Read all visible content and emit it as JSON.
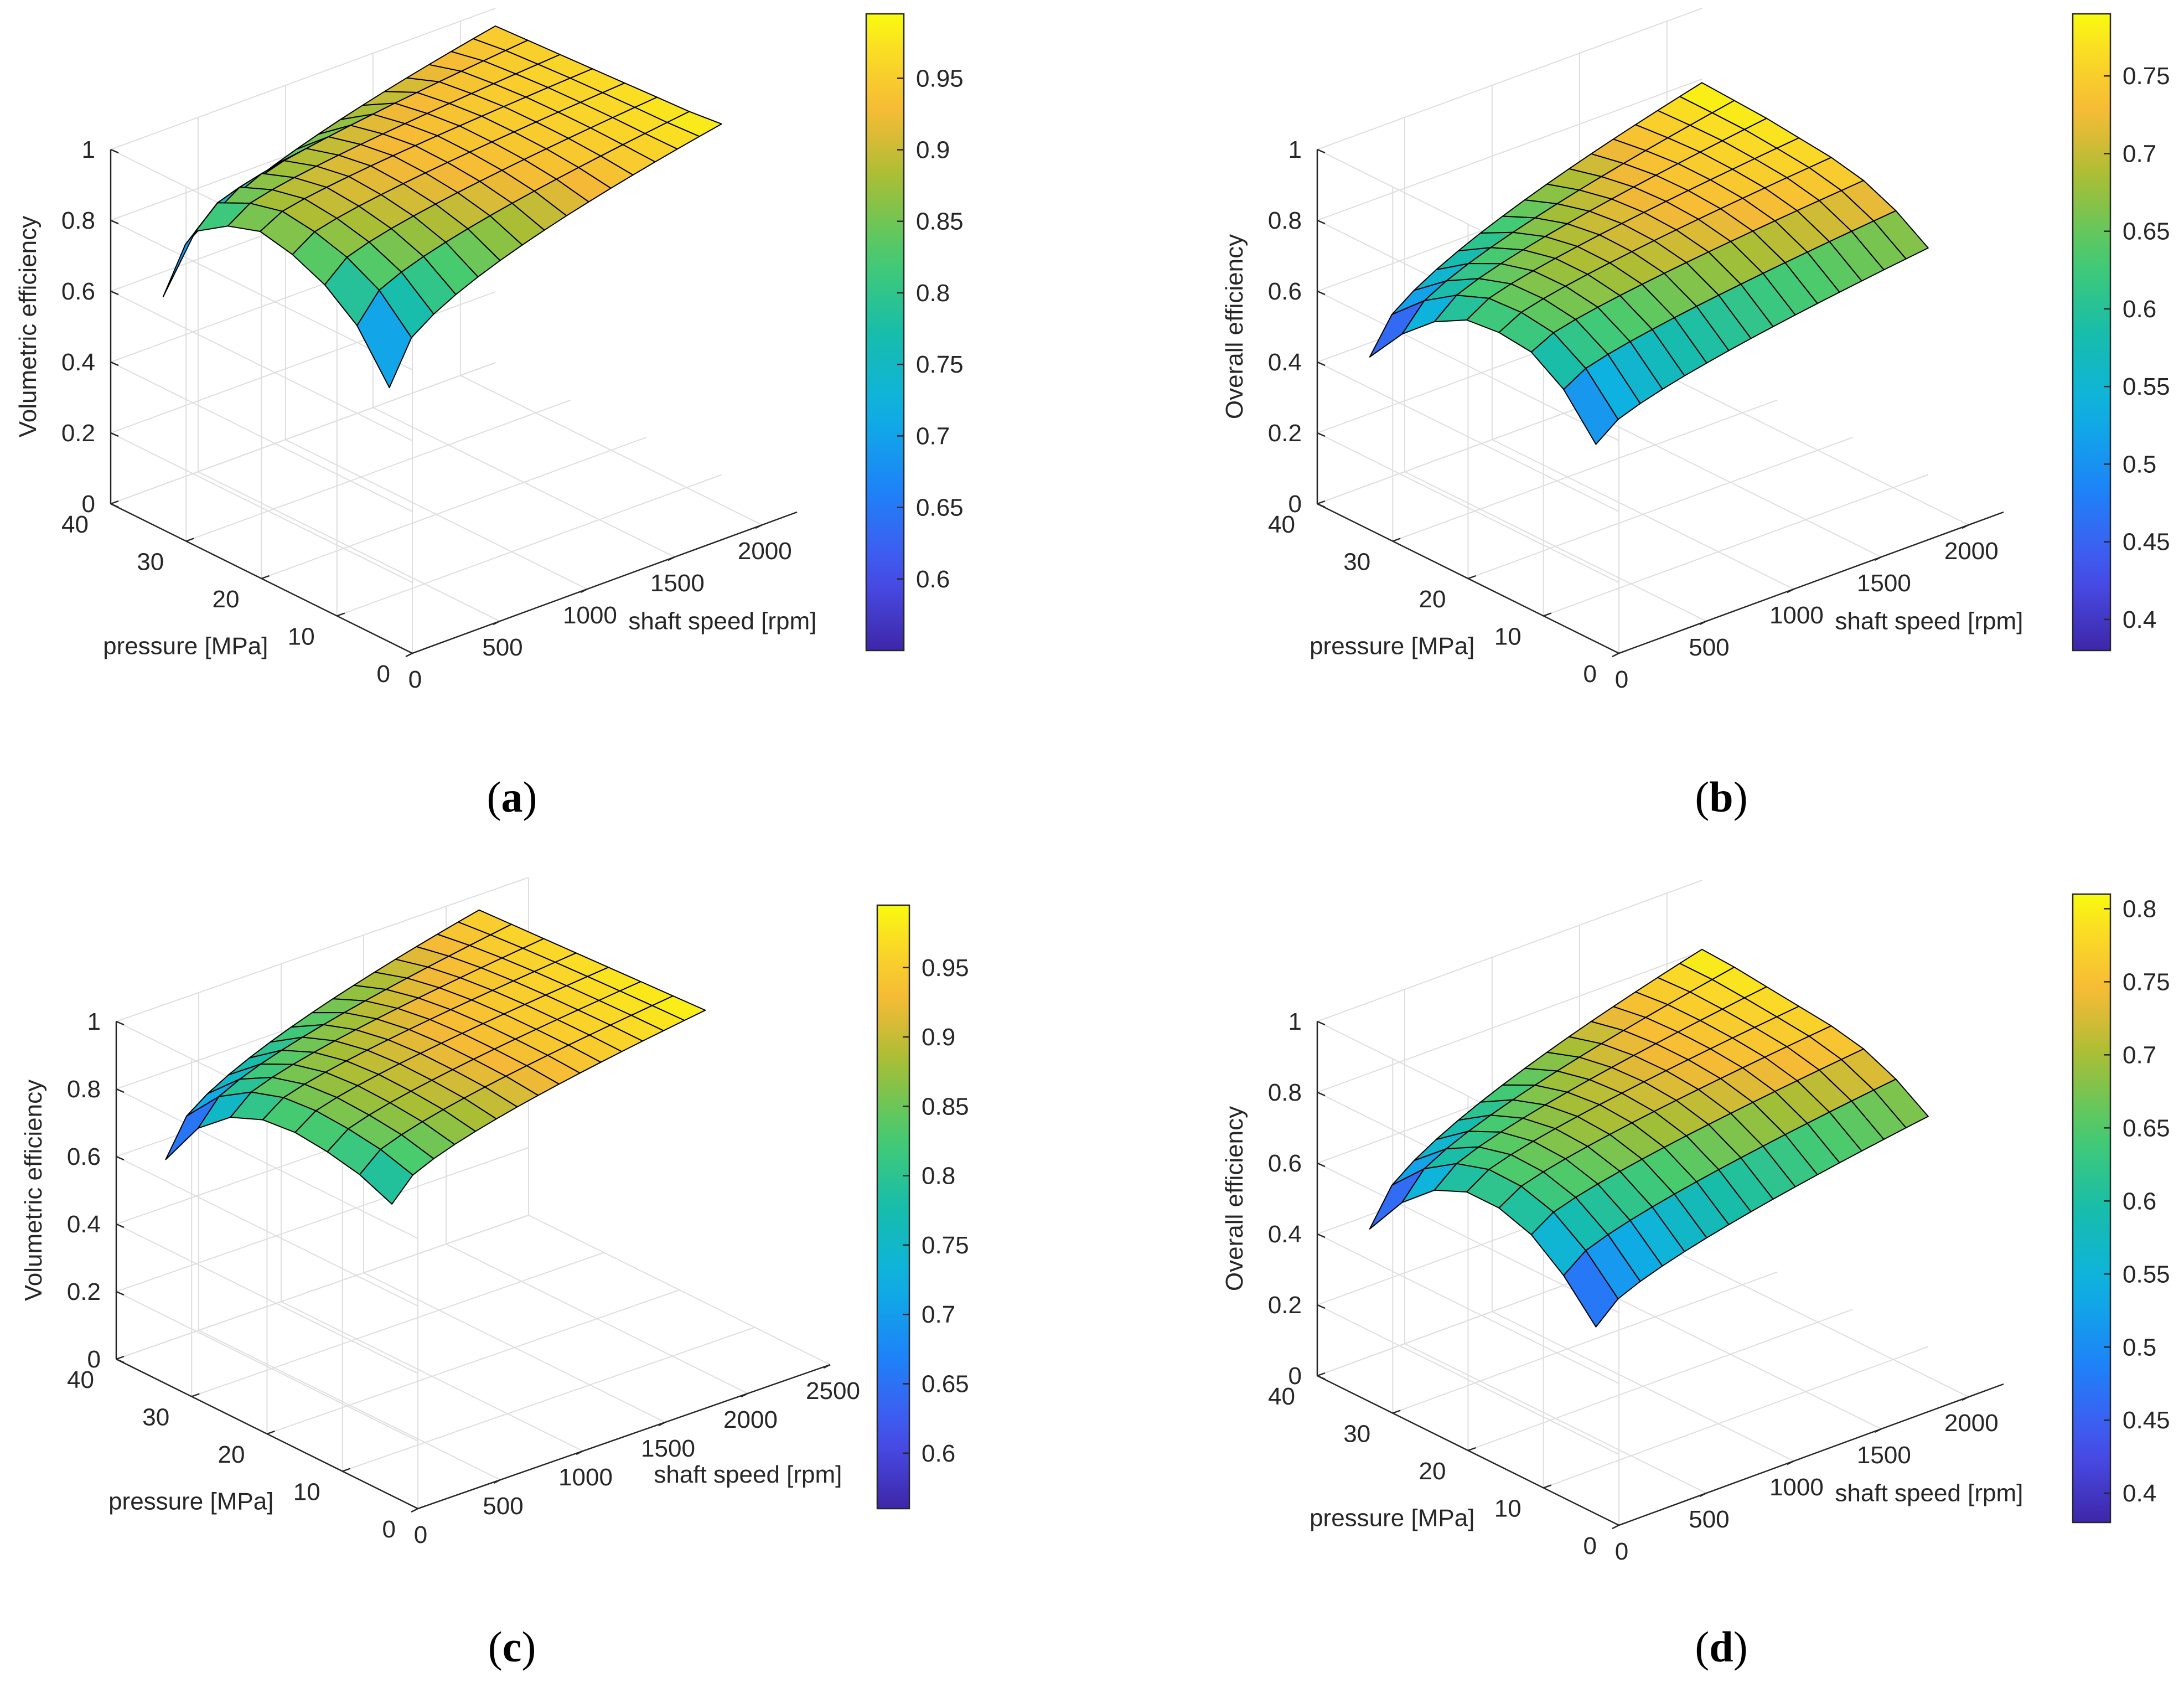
{
  "figure": {
    "colormap": "parula",
    "edge_color": "#000000",
    "grid_color": "#dedede",
    "axis_color": "#262626"
  },
  "captions": [
    {
      "open": "(",
      "letter": "a",
      "close": ")"
    },
    {
      "open": "(",
      "letter": "b",
      "close": ")"
    },
    {
      "open": "(",
      "letter": "c",
      "close": ")"
    },
    {
      "open": "(",
      "letter": "d",
      "close": ")"
    }
  ],
  "chart_data": [
    {
      "type": "surface",
      "panel": "a",
      "zlabel": "Volumetric efficiency",
      "xlabel": "shaft speed [rpm]",
      "ylabel": "pressure [MPa]",
      "xlim": [
        0,
        2200
      ],
      "ylim": [
        0,
        40
      ],
      "zlim": [
        0,
        1
      ],
      "x_ticks": [
        "0",
        "500",
        "1000",
        "1500",
        "2000"
      ],
      "y_ticks": [
        "0",
        "10",
        "20",
        "30",
        "40"
      ],
      "z_ticks": [
        "0",
        "0.2",
        "0.4",
        "0.6",
        "0.8",
        "1"
      ],
      "colorbar_ticks": [
        "0.6",
        "0.65",
        "0.7",
        "0.75",
        "0.8",
        "0.85",
        "0.9",
        "0.95"
      ],
      "clim": [
        0.55,
        0.995
      ],
      "surface": {
        "speed_range": [
          300,
          2200
        ],
        "pressure_range": [
          10,
          40
        ],
        "speed_samples": 16,
        "pressure_samples": 8,
        "z_at_min_speed_by_pressure": [
          0.59,
          0.72,
          0.79,
          0.83,
          0.85,
          0.82,
          0.76,
          0.53
        ],
        "z_at_max_speed_by_pressure": [
          0.99,
          0.98,
          0.975,
          0.97,
          0.965,
          0.96,
          0.955,
          0.95
        ],
        "speed_curve_exponent": 0.45
      }
    },
    {
      "type": "surface",
      "panel": "b",
      "zlabel": "Overall efficiency",
      "xlabel": "shaft speed [rpm]",
      "ylabel": "pressure [MPa]",
      "xlim": [
        0,
        2200
      ],
      "ylim": [
        0,
        40
      ],
      "zlim": [
        0,
        1
      ],
      "x_ticks": [
        "0",
        "500",
        "1000",
        "1500",
        "2000"
      ],
      "y_ticks": [
        "0",
        "10",
        "20",
        "30",
        "40"
      ],
      "z_ticks": [
        "0",
        "0.2",
        "0.4",
        "0.6",
        "0.8",
        "1"
      ],
      "colorbar_ticks": [
        "0.4",
        "0.45",
        "0.5",
        "0.55",
        "0.6",
        "0.65",
        "0.7",
        "0.75"
      ],
      "clim": [
        0.38,
        0.79
      ],
      "surface": {
        "speed_range": [
          300,
          2200
        ],
        "pressure_range": [
          10,
          40
        ],
        "speed_samples": 16,
        "pressure_samples": 8,
        "z_at_min_speed_by_pressure": [
          0.43,
          0.54,
          0.6,
          0.61,
          0.6,
          0.55,
          0.47,
          0.36
        ],
        "z_at_max_speed_by_pressure": [
          0.64,
          0.7,
          0.74,
          0.76,
          0.77,
          0.78,
          0.785,
          0.79
        ],
        "speed_curve_exponent": 0.55
      }
    },
    {
      "type": "surface",
      "panel": "c",
      "zlabel": "Volumetric efficiency",
      "xlabel": "shaft speed [rpm]",
      "ylabel": "pressure [MPa]",
      "xlim": [
        0,
        2500
      ],
      "ylim": [
        0,
        40
      ],
      "zlim": [
        0,
        1
      ],
      "x_ticks": [
        "0",
        "500",
        "1000",
        "1500",
        "2000",
        "2500"
      ],
      "y_ticks": [
        "0",
        "10",
        "20",
        "30",
        "40"
      ],
      "z_ticks": [
        "0",
        "0.2",
        "0.4",
        "0.6",
        "0.8",
        "1"
      ],
      "colorbar_ticks": [
        "0.6",
        "0.65",
        "0.7",
        "0.75",
        "0.8",
        "0.85",
        "0.9",
        "0.95"
      ],
      "clim": [
        0.56,
        0.995
      ],
      "surface": {
        "speed_range": [
          300,
          2200
        ],
        "pressure_range": [
          10,
          40
        ],
        "speed_samples": 16,
        "pressure_samples": 8,
        "z_at_min_speed_by_pressure": [
          0.74,
          0.78,
          0.8,
          0.81,
          0.8,
          0.76,
          0.68,
          0.54
        ],
        "z_at_max_speed_by_pressure": [
          0.99,
          0.985,
          0.98,
          0.975,
          0.97,
          0.965,
          0.96,
          0.955
        ],
        "speed_curve_exponent": 0.5
      }
    },
    {
      "type": "surface",
      "panel": "d",
      "zlabel": "Overall efficiency",
      "xlabel": "shaft speed [rpm]",
      "ylabel": "pressure [MPa]",
      "xlim": [
        0,
        2200
      ],
      "ylim": [
        0,
        40
      ],
      "zlim": [
        0,
        1
      ],
      "x_ticks": [
        "0",
        "500",
        "1000",
        "1500",
        "2000"
      ],
      "y_ticks": [
        "0",
        "10",
        "20",
        "30",
        "40"
      ],
      "z_ticks": [
        "0",
        "0.2",
        "0.4",
        "0.6",
        "0.8",
        "1"
      ],
      "colorbar_ticks": [
        "0.4",
        "0.45",
        "0.5",
        "0.55",
        "0.6",
        "0.65",
        "0.7",
        "0.75",
        "0.8"
      ],
      "clim": [
        0.38,
        0.81
      ],
      "surface": {
        "speed_range": [
          300,
          2200
        ],
        "pressure_range": [
          10,
          40
        ],
        "speed_samples": 16,
        "pressure_samples": 8,
        "z_at_min_speed_by_pressure": [
          0.4,
          0.5,
          0.57,
          0.6,
          0.6,
          0.56,
          0.48,
          0.36
        ],
        "z_at_max_speed_by_pressure": [
          0.65,
          0.71,
          0.75,
          0.77,
          0.78,
          0.79,
          0.8,
          0.805
        ],
        "speed_curve_exponent": 0.55
      }
    }
  ]
}
